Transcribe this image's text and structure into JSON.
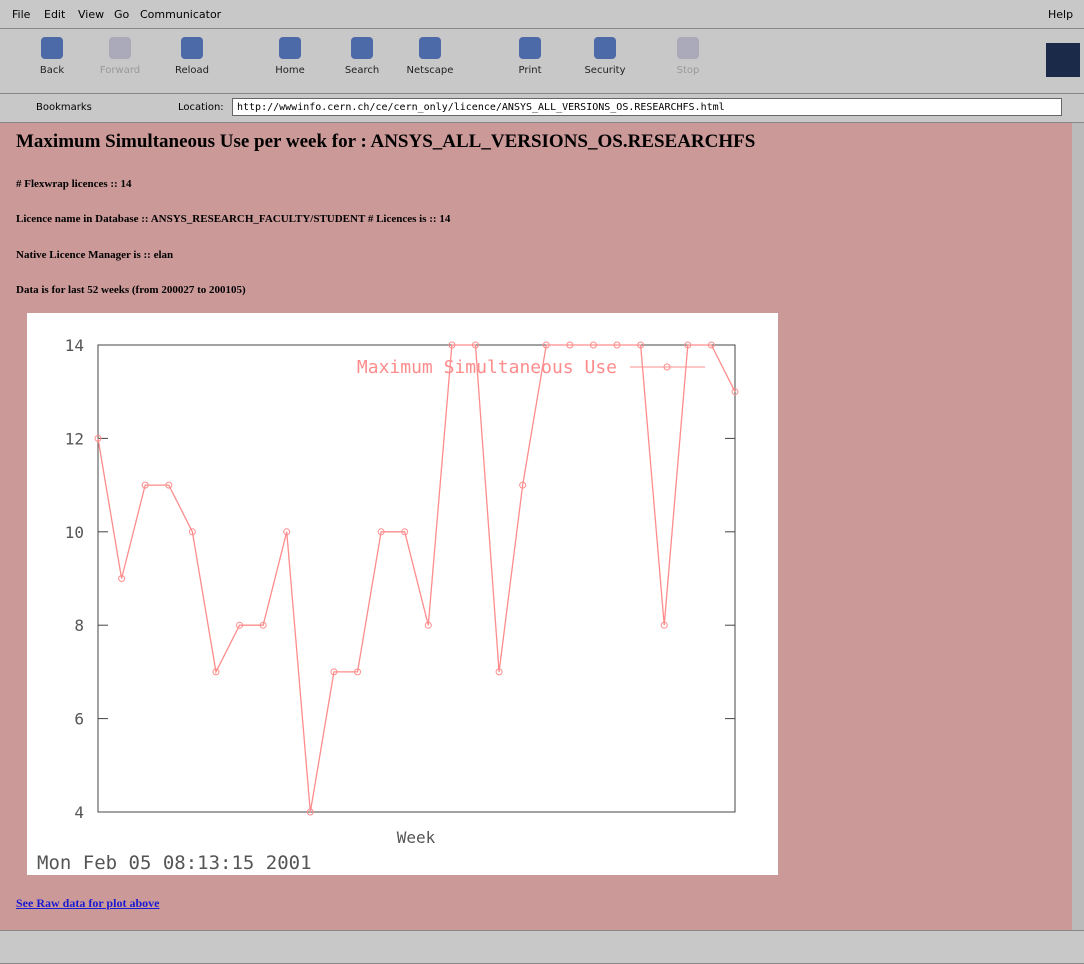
{
  "menu": [
    "File",
    "Edit",
    "View",
    "Go",
    "Communicator",
    "Help"
  ],
  "toolbar": [
    "Back",
    "Forward",
    "Reload",
    "Home",
    "Search",
    "Netscape",
    "Print",
    "Security",
    "Stop"
  ],
  "location_bar": {
    "bookmarks": "Bookmarks",
    "label": "Location:",
    "url": "http://wwwinfo.cern.ch/ce/cern_only/licence/ANSYS_ALL_VERSIONS_OS.RESEARCHFS.html"
  },
  "content": {
    "heading": "Maximum Simultaneous Use per week for : ANSYS_ALL_VERSIONS_OS.RESEARCHFS",
    "lines": [
      "# Flexwrap licences :: 14",
      "Licence name in Database :: ANSYS_RESEARCH_FACULTY/STUDENT # Licences is :: 14",
      "Native Licence Manager is :: elan",
      "Data is for last 52 weeks (from 200027 to 200105)"
    ],
    "link": "See Raw data for plot above"
  },
  "chart_data": {
    "type": "line",
    "x_label": "Week",
    "timestamp": "Mon Feb 05 08:13:15 2001",
    "series": [
      {
        "name": "Maximum Simultaneous Use",
        "color": "#ff8c8c",
        "values": [
          12,
          9,
          11,
          11,
          10,
          7,
          8,
          8,
          10,
          4,
          7,
          7,
          10,
          10,
          8,
          14,
          14,
          7,
          11,
          14,
          14,
          14,
          14,
          14,
          8,
          14,
          14,
          13
        ]
      }
    ],
    "ylim": [
      4,
      14
    ],
    "yticks": [
      4,
      6,
      8,
      10,
      12,
      14
    ],
    "legend": "top-right"
  }
}
